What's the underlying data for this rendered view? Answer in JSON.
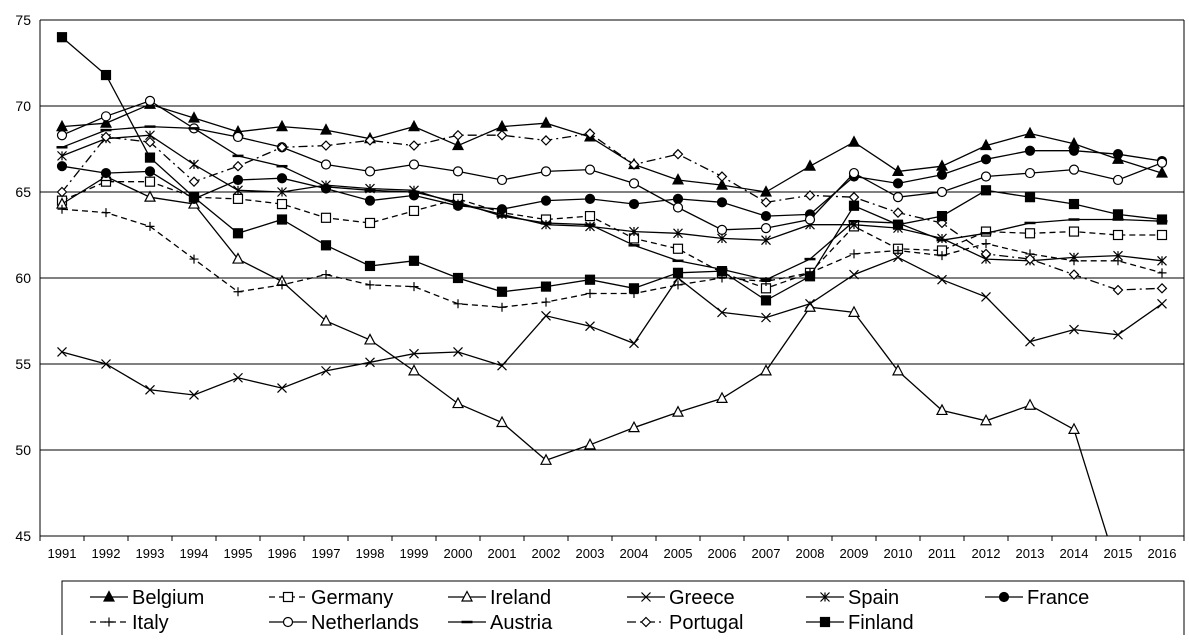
{
  "chart_data": {
    "type": "line",
    "title": "",
    "xlabel": "",
    "ylabel": "",
    "ylim": [
      45,
      75
    ],
    "yticks": [
      45,
      50,
      55,
      60,
      65,
      70,
      75
    ],
    "grid": "horizontal",
    "legend_position": "bottom",
    "categories": [
      "1991",
      "1992",
      "1993",
      "1994",
      "1995",
      "1996",
      "1997",
      "1998",
      "1999",
      "2000",
      "2001",
      "2002",
      "2003",
      "2004",
      "2005",
      "2006",
      "2007",
      "2008",
      "2009",
      "2010",
      "2011",
      "2012",
      "2013",
      "2014",
      "2015",
      "2016"
    ],
    "series": [
      {
        "name": "Belgium",
        "marker": "triangle-filled",
        "dash": "solid",
        "values": [
          68.8,
          69.0,
          70.1,
          69.3,
          68.5,
          68.8,
          68.6,
          68.1,
          68.8,
          67.7,
          68.8,
          69.0,
          68.2,
          66.6,
          65.7,
          65.4,
          65.0,
          66.5,
          67.9,
          66.2,
          66.5,
          67.7,
          68.4,
          67.8,
          66.9,
          66.1
        ]
      },
      {
        "name": "Germany",
        "marker": "square-open",
        "dash": "dash",
        "values": [
          64.5,
          65.6,
          65.6,
          64.7,
          64.6,
          64.3,
          63.5,
          63.2,
          63.9,
          64.6,
          63.8,
          63.4,
          63.6,
          62.3,
          61.7,
          60.3,
          59.4,
          60.3,
          63.0,
          61.7,
          61.6,
          62.7,
          62.6,
          62.7,
          62.5,
          62.5
        ]
      },
      {
        "name": "Ireland",
        "marker": "triangle-open",
        "dash": "solid",
        "values": [
          64.3,
          65.9,
          64.7,
          64.3,
          61.1,
          59.8,
          57.5,
          56.4,
          54.6,
          52.7,
          51.6,
          49.4,
          50.3,
          51.3,
          52.2,
          53.0,
          54.6,
          58.3,
          58.0,
          54.6,
          52.3,
          51.7,
          52.6,
          51.2,
          43.0,
          null
        ]
      },
      {
        "name": "Greece",
        "marker": "x",
        "dash": "solid",
        "values": [
          55.7,
          55.0,
          53.5,
          53.2,
          54.2,
          53.6,
          54.6,
          55.1,
          55.6,
          55.7,
          54.9,
          57.8,
          57.2,
          56.2,
          60.0,
          58.0,
          57.7,
          58.5,
          60.2,
          61.2,
          59.9,
          58.9,
          56.3,
          57.0,
          56.7,
          58.5
        ]
      },
      {
        "name": "Spain",
        "marker": "asterisk",
        "dash": "solid",
        "values": [
          67.1,
          68.1,
          68.3,
          66.6,
          65.1,
          65.0,
          65.4,
          65.2,
          65.1,
          64.3,
          63.7,
          63.1,
          63.0,
          62.7,
          62.6,
          62.3,
          62.2,
          63.1,
          63.1,
          62.9,
          62.3,
          61.1,
          61.0,
          61.2,
          61.3,
          61.0
        ]
      },
      {
        "name": "France",
        "marker": "circle-filled",
        "dash": "solid",
        "values": [
          66.5,
          66.1,
          66.2,
          64.6,
          65.7,
          65.8,
          65.2,
          64.5,
          64.8,
          64.2,
          64.0,
          64.5,
          64.6,
          64.3,
          64.6,
          64.4,
          63.6,
          63.7,
          65.9,
          65.5,
          66.0,
          66.9,
          67.4,
          67.4,
          67.2,
          66.8
        ]
      },
      {
        "name": "Italy",
        "marker": "plus",
        "dash": "dash",
        "values": [
          64.0,
          63.8,
          63.0,
          61.1,
          59.2,
          59.6,
          60.2,
          59.6,
          59.5,
          58.5,
          58.3,
          58.6,
          59.1,
          59.1,
          59.6,
          60.0,
          59.8,
          60.3,
          61.4,
          61.6,
          61.3,
          62.0,
          61.4,
          61.0,
          61.0,
          60.3
        ]
      },
      {
        "name": "Netherlands",
        "marker": "circle-open",
        "dash": "solid",
        "values": [
          68.3,
          69.4,
          70.3,
          68.7,
          68.2,
          67.6,
          66.6,
          66.2,
          66.6,
          66.2,
          65.7,
          66.2,
          66.3,
          65.5,
          64.1,
          62.8,
          62.9,
          63.4,
          66.1,
          64.7,
          65.0,
          65.9,
          66.1,
          66.3,
          65.7,
          66.7
        ]
      },
      {
        "name": "Austria",
        "marker": "dash-mark",
        "dash": "solid",
        "values": [
          67.6,
          68.6,
          68.8,
          68.7,
          67.1,
          66.5,
          65.3,
          65.1,
          65.0,
          64.4,
          63.6,
          63.2,
          63.1,
          61.9,
          61.0,
          60.5,
          59.9,
          61.1,
          63.3,
          63.2,
          62.2,
          62.6,
          63.2,
          63.4,
          63.4,
          63.3
        ]
      },
      {
        "name": "Portugal",
        "marker": "diamond-open",
        "dash": "dashdot",
        "values": [
          65.0,
          68.2,
          67.9,
          65.6,
          66.5,
          67.6,
          67.7,
          68.0,
          67.7,
          68.3,
          68.3,
          68.0,
          68.4,
          66.6,
          67.2,
          65.9,
          64.4,
          64.8,
          64.7,
          63.8,
          63.2,
          61.4,
          61.1,
          60.2,
          59.3,
          59.4
        ]
      },
      {
        "name": "Finland",
        "marker": "square-filled",
        "dash": "solid",
        "values": [
          74.0,
          71.8,
          67.0,
          64.7,
          62.6,
          63.4,
          61.9,
          60.7,
          61.0,
          60.0,
          59.2,
          59.5,
          59.9,
          59.4,
          60.3,
          60.4,
          58.7,
          60.1,
          64.2,
          63.1,
          63.6,
          65.1,
          64.7,
          64.3,
          63.7,
          63.4
        ]
      }
    ]
  }
}
